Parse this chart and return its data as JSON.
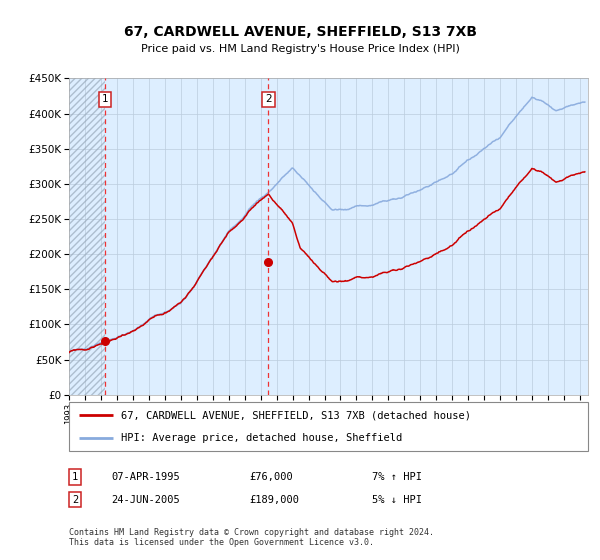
{
  "title": "67, CARDWELL AVENUE, SHEFFIELD, S13 7XB",
  "subtitle": "Price paid vs. HM Land Registry's House Price Index (HPI)",
  "ylim": [
    0,
    450000
  ],
  "yticks": [
    0,
    50000,
    100000,
    150000,
    200000,
    250000,
    300000,
    350000,
    400000,
    450000
  ],
  "ytick_labels": [
    "£0",
    "£50K",
    "£100K",
    "£150K",
    "£200K",
    "£250K",
    "£300K",
    "£350K",
    "£400K",
    "£450K"
  ],
  "sale1_date": 1995.27,
  "sale1_price": 76000,
  "sale2_date": 2005.48,
  "sale2_price": 189000,
  "legend_entry1": "67, CARDWELL AVENUE, SHEFFIELD, S13 7XB (detached house)",
  "legend_entry2": "HPI: Average price, detached house, Sheffield",
  "annotation1_date": "07-APR-1995",
  "annotation1_price": "£76,000",
  "annotation1_hpi": "7% ↑ HPI",
  "annotation2_date": "24-JUN-2005",
  "annotation2_price": "£189,000",
  "annotation2_hpi": "5% ↓ HPI",
  "footer": "Contains HM Land Registry data © Crown copyright and database right 2024.\nThis data is licensed under the Open Government Licence v3.0.",
  "plot_bg": "#ddeeff",
  "red_line_color": "#cc0000",
  "blue_line_color": "#88aadd",
  "dashed_vline_color": "#ee3333",
  "grid_color": "#bbccdd",
  "hatch_edge_color": "#99aabb"
}
